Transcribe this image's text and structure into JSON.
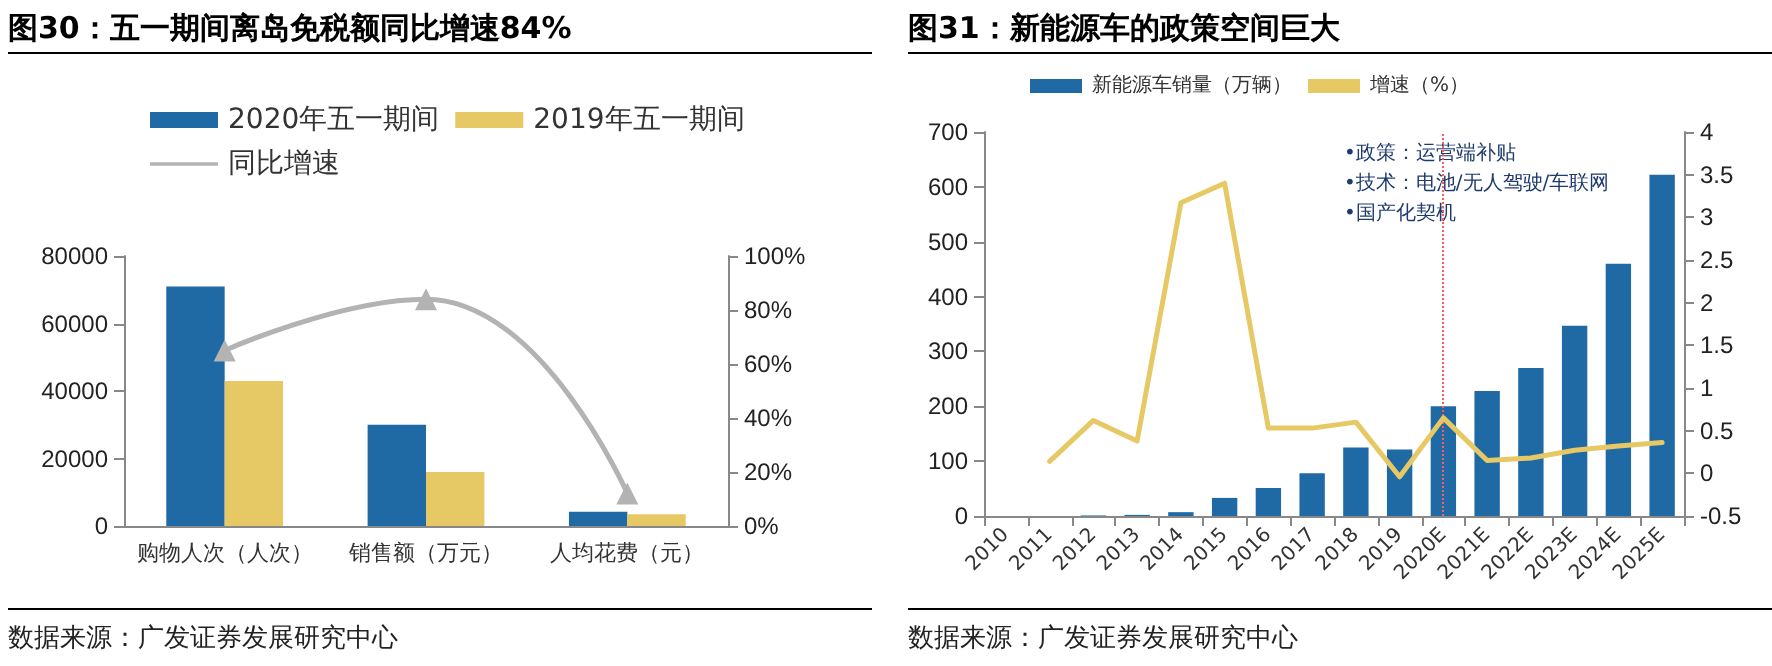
{
  "chart_data": [
    {
      "type": "bar",
      "title": "图30：五一期间离岛免税额同比增速84%",
      "categories": [
        "购物人次（人次）",
        "销售额（万元）",
        "人均花费（元）"
      ],
      "series": [
        {
          "name": "2020年五一期间",
          "color": "#1f6aa5",
          "values": [
            71000,
            30000,
            4200
          ]
        },
        {
          "name": "2019年五一期间",
          "color": "#e6c865",
          "values": [
            43000,
            16000,
            3500
          ]
        },
        {
          "name": "同比增速",
          "type": "line",
          "axis": "y2",
          "color": "#b3b3b3",
          "marker": "triangle",
          "values": [
            65,
            84,
            12
          ]
        }
      ],
      "ylim": [
        0,
        80000
      ],
      "yticks": [
        0,
        20000,
        40000,
        60000,
        80000
      ],
      "y2lim": [
        0,
        100
      ],
      "y2ticks": [
        {
          "value": 0,
          "label": "0%"
        },
        {
          "value": 20,
          "label": "20%"
        },
        {
          "value": 40,
          "label": "40%"
        },
        {
          "value": 60,
          "label": "60%"
        },
        {
          "value": 80,
          "label": "80%"
        },
        {
          "value": 100,
          "label": "100%"
        }
      ],
      "legend": "top",
      "grid": false,
      "annotations": [
        "数据来源：广发证券发展研究中心"
      ]
    },
    {
      "type": "bar",
      "title": "图31：新能源车的政策空间巨大",
      "categories": [
        "2010",
        "2011",
        "2012",
        "2013",
        "2014",
        "2015",
        "2016",
        "2017",
        "2018",
        "2019",
        "2020E",
        "2021E",
        "2022E",
        "2023E",
        "2024E",
        "2025E"
      ],
      "series": [
        {
          "name": "新能源车销量（万辆）",
          "color": "#1f6aa5",
          "values": [
            0,
            0,
            1,
            2,
            7,
            33,
            51,
            78,
            125,
            121,
            200,
            228,
            270,
            347,
            460,
            622
          ]
        },
        {
          "name": "增速（%）",
          "type": "line",
          "axis": "y2",
          "color": "#e6c865",
          "marker": "none",
          "values": [
            null,
            0.14,
            0.62,
            0.38,
            3.17,
            3.4,
            0.53,
            0.53,
            0.6,
            -0.04,
            0.65,
            0.15,
            0.18,
            0.27,
            0.32,
            0.36
          ]
        }
      ],
      "ylim": [
        0,
        700
      ],
      "yticks": [
        0,
        100,
        200,
        300,
        400,
        500,
        600,
        700
      ],
      "y2lim": [
        -0.5,
        4
      ],
      "y2ticks": [
        -0.5,
        0,
        0.5,
        1,
        1.5,
        2,
        2.5,
        3,
        3.5,
        4
      ],
      "ref_lines": [
        {
          "axis": "x",
          "value": "2020E",
          "label": null,
          "color": "#ff5a5a",
          "line_style": "dotted"
        }
      ],
      "legend": "top",
      "grid": false,
      "annotations": [
        "•政策：运营端补贴",
        "•技术：电池/无人驾驶/车联网",
        "•国产化契机",
        "数据来源：广发证券发展研究中心"
      ]
    }
  ]
}
